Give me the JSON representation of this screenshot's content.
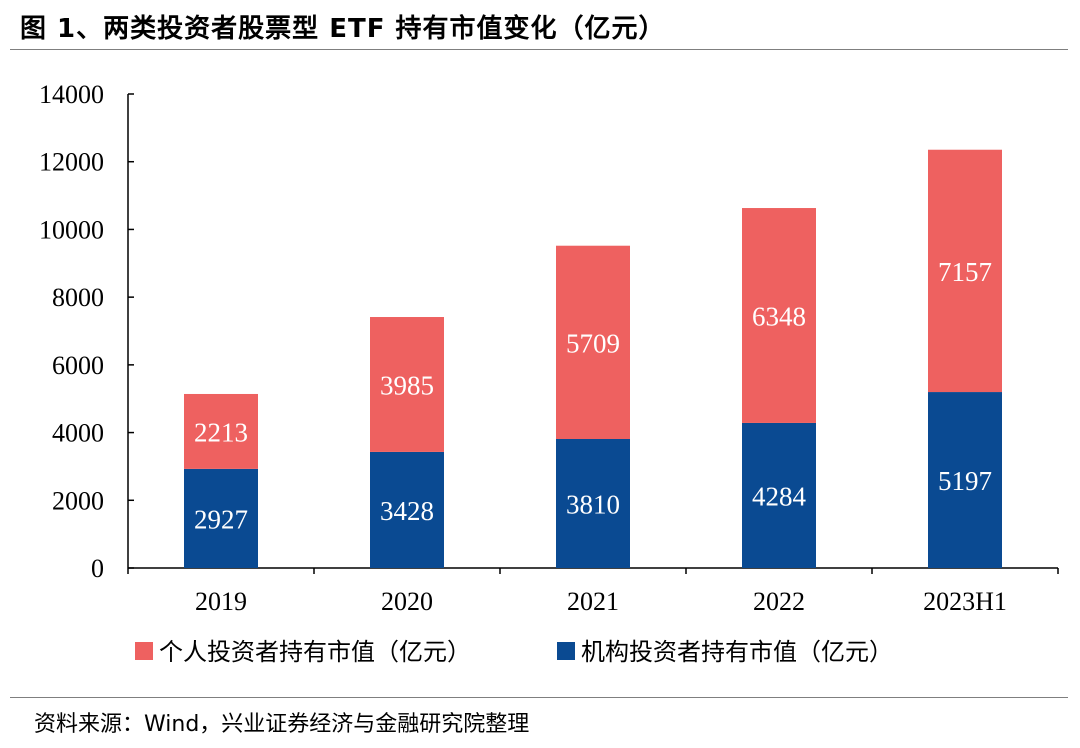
{
  "figure": {
    "title": "图 1、两类投资者股票型 ETF 持有市值变化（亿元）",
    "source": "资料来源：Wind，兴业证券经济与金融研究院整理"
  },
  "chart_data": {
    "type": "bar",
    "stacked": true,
    "categories": [
      "2019",
      "2020",
      "2021",
      "2022",
      "2023H1"
    ],
    "series": [
      {
        "name": "机构投资者持有市值（亿元）",
        "values": [
          2927,
          3428,
          3810,
          4284,
          5197
        ],
        "color": "#0a4a92"
      },
      {
        "name": "个人投资者持有市值（亿元）",
        "values": [
          2213,
          3985,
          5709,
          6348,
          7157
        ],
        "color": "#ee6160"
      }
    ],
    "yticks": [
      0,
      2000,
      4000,
      6000,
      8000,
      10000,
      12000,
      14000
    ],
    "ylim": [
      0,
      14000
    ],
    "legend_order": [
      1,
      0
    ],
    "legend_position": "bottom",
    "grid": false,
    "data_labels": true
  }
}
